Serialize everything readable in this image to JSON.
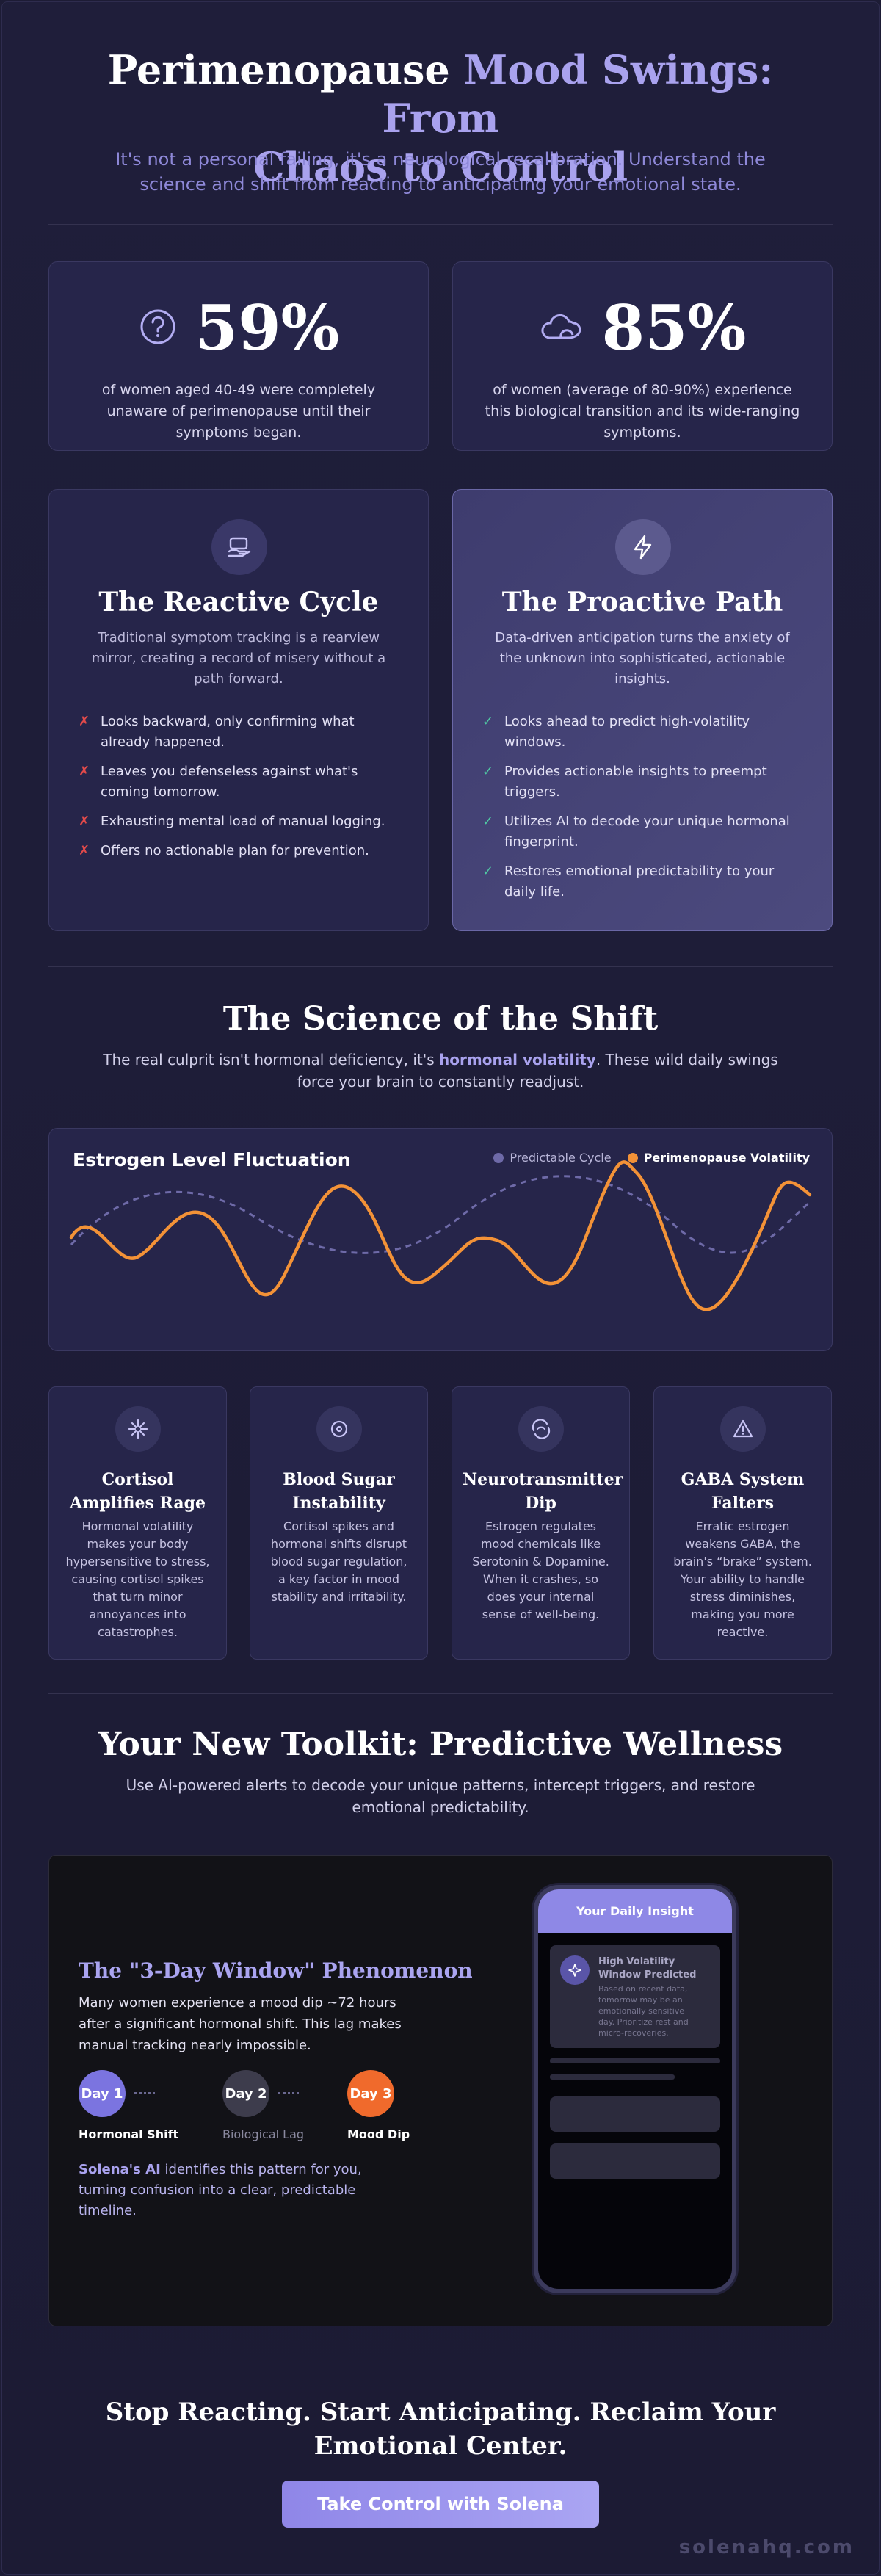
{
  "hero": {
    "title_part1": "Perimenopause",
    "title_accent": "Mood Swings: From",
    "title_part2": "Chaos to Control",
    "subtitle": "It's not a personal failing, it's a neurological recalibration. Understand the science and shift from reacting to anticipating your emotional state."
  },
  "stats": [
    {
      "icon": "question-icon",
      "value": "59%",
      "text": "of women aged 40-49 were completely unaware of perimenopause until their symptoms began."
    },
    {
      "icon": "cloud-icon",
      "value": "85%",
      "text": "of women (average of 80-90%) experience this biological transition and its wide-ranging symptoms."
    }
  ],
  "reactive": {
    "icon": "hand-card-icon",
    "title": "The Reactive Cycle",
    "desc": "Traditional symptom tracking is a rearview mirror, creating a record of misery without a path forward.",
    "mark": "✗",
    "items": [
      "Looks backward, only confirming what already happened.",
      "Leaves you defenseless against what's coming tomorrow.",
      "Exhausting mental load of manual logging.",
      "Offers no actionable plan for prevention."
    ]
  },
  "proactive": {
    "icon": "lightning-icon",
    "title": "The Proactive Path",
    "desc": "Data-driven anticipation turns the anxiety of the unknown into sophisticated, actionable insights.",
    "mark": "✓",
    "items": [
      "Looks ahead to predict high-volatility windows.",
      "Provides actionable insights to preempt triggers.",
      "Utilizes AI to decode your unique hormonal fingerprint.",
      "Restores emotional predictability to your daily life."
    ]
  },
  "science": {
    "title": "The Science of the Shift",
    "sub_pre": "The real culprit isn't hormonal deficiency, it's ",
    "sub_accent": "hormonal volatility",
    "sub_post": ". These wild daily swings force your brain to constantly readjust."
  },
  "chart_data": {
    "type": "line",
    "title": "Estrogen Level Fluctuation",
    "legend_position": "top-right",
    "series": [
      {
        "name": "Predictable Cycle",
        "color": "#6e6aa8",
        "style": "dashed"
      },
      {
        "name": "Perimenopause Volatility",
        "color": "#f39237",
        "style": "solid"
      }
    ]
  },
  "factors": [
    {
      "icon": "sparkle-burst-icon",
      "title": "Cortisol Amplifies Rage",
      "text": "Hormonal volatility makes your body hypersensitive to stress, causing cortisol spikes that turn minor annoyances into catastrophes."
    },
    {
      "icon": "coin-icon",
      "title": "Blood Sugar Instability",
      "text": "Cortisol spikes and hormonal shifts disrupt blood sugar regulation, a key factor in mood stability and irritability."
    },
    {
      "icon": "brain-swirl-icon",
      "title": "Neurotransmitter Dip",
      "text": "Estrogen regulates mood chemicals like Serotonin & Dopamine. When it crashes, so does your internal sense of well-being."
    },
    {
      "icon": "warning-icon",
      "title": "GABA System Falters",
      "text": "Erratic estrogen weakens GABA, the brain's “brake” system. Your ability to handle stress diminishes, making you more reactive."
    }
  ],
  "toolkit": {
    "title": "Your New Toolkit: Predictive Wellness",
    "sub": "Use AI-powered alerts to decode your unique patterns, intercept triggers, and restore emotional predictability.",
    "phenomenon_title": "The \"3-Day Window\" Phenomenon",
    "phenomenon_text": "Many women experience a mood dip ~72 hours after a significant hormonal shift. This lag makes manual tracking nearly impossible.",
    "days": [
      {
        "label": "Day 1",
        "caption": "Hormonal Shift",
        "color": "#7b74e0"
      },
      {
        "label": "Day 2",
        "caption": "Biological Lag",
        "color": "#3d3c4c"
      },
      {
        "label": "Day 3",
        "caption": "Mood Dip",
        "color": "#f06a2c"
      }
    ],
    "solena_strong": "Solena's AI",
    "solena_rest": " identifies this pattern for you, turning confusion into a clear, predictable timeline.",
    "phone": {
      "header": "Your Daily Insight",
      "insight_title": "High Volatility Window Predicted",
      "insight_text": "Based on recent data, tomorrow may be an emotionally sensitive day. Prioritize rest and micro-recoveries."
    }
  },
  "cta": {
    "title": "Stop Reacting. Start Anticipating. Reclaim Your Emotional Center.",
    "button": "Take Control with Solena"
  },
  "brand": "solenahq.com"
}
